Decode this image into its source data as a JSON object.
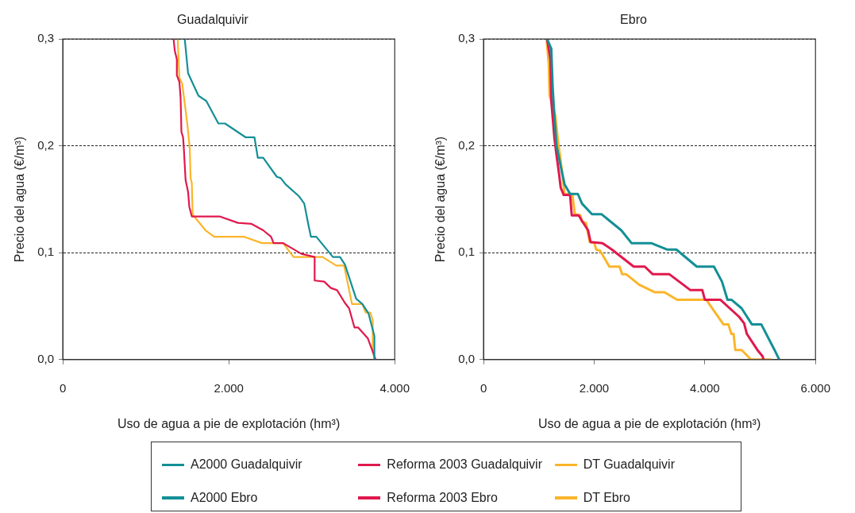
{
  "chart_data": [
    {
      "type": "line",
      "title": "Guadalquivir",
      "xlabel": "Uso de agua a pie de explotación (hm³)",
      "ylabel": "Precio del agua (€/m³)",
      "xlim": [
        0,
        4000
      ],
      "xticks": [
        0,
        {
          "value": 2000,
          "label": "2.000"
        },
        {
          "value": 4000,
          "label": "4.000"
        }
      ],
      "ylim": [
        0,
        0.3
      ],
      "yticks": [
        {
          "value": 0,
          "label": "0,0"
        },
        {
          "value": 0.1,
          "label": "0,1"
        },
        {
          "value": 0.2,
          "label": "0,2"
        },
        {
          "value": 0.3,
          "label": "0,3"
        }
      ],
      "grid": "y",
      "legend": "bottom",
      "series": [
        {
          "name": "A2000 Guadalquivir",
          "color": "#148f96",
          "x": [
            1470,
            1510,
            1635,
            1730,
            1875,
            1955,
            2205,
            2310,
            2350,
            2415,
            2580,
            2625,
            2685,
            2845,
            2910,
            2960,
            2990,
            3055,
            3255,
            3340,
            3400,
            3535,
            3610,
            3685,
            3755,
            3755
          ],
          "values": [
            0.3,
            0.268,
            0.247,
            0.242,
            0.221,
            0.221,
            0.208,
            0.208,
            0.189,
            0.189,
            0.171,
            0.17,
            0.164,
            0.153,
            0.146,
            0.126,
            0.115,
            0.115,
            0.096,
            0.096,
            0.089,
            0.057,
            0.052,
            0.043,
            0.022,
            0
          ]
        },
        {
          "name": "Reforma 2003 Guadalquivir",
          "color": "#e0194d",
          "x": [
            1335,
            1350,
            1375,
            1375,
            1405,
            1420,
            1430,
            1450,
            1460,
            1480,
            1510,
            1525,
            1555,
            1890,
            2110,
            2275,
            2415,
            2510,
            2540,
            2655,
            2875,
            3035,
            3035,
            3150,
            3230,
            3305,
            3400,
            3450,
            3515,
            3560,
            3675,
            3770
          ],
          "values": [
            0.3,
            0.289,
            0.281,
            0.266,
            0.26,
            0.245,
            0.213,
            0.208,
            0.196,
            0.168,
            0.157,
            0.143,
            0.134,
            0.134,
            0.128,
            0.127,
            0.121,
            0.115,
            0.109,
            0.109,
            0.099,
            0.096,
            0.074,
            0.073,
            0.067,
            0.065,
            0.053,
            0.048,
            0.03,
            0.03,
            0.02,
            0
          ]
        },
        {
          "name": "DT Guadalquivir",
          "color": "#fbb52b",
          "x": [
            1385,
            1405,
            1440,
            1500,
            1530,
            1540,
            1555,
            1565,
            1605,
            1720,
            1825,
            2180,
            2400,
            2655,
            2780,
            3130,
            3295,
            3390,
            3485,
            3610,
            3650,
            3705,
            3735,
            3735,
            3755
          ],
          "values": [
            0.3,
            0.264,
            0.258,
            0.221,
            0.198,
            0.17,
            0.165,
            0.136,
            0.132,
            0.121,
            0.115,
            0.115,
            0.109,
            0.109,
            0.096,
            0.096,
            0.088,
            0.088,
            0.052,
            0.052,
            0.044,
            0.044,
            0.037,
            0.011,
            0
          ]
        }
      ]
    },
    {
      "type": "line",
      "title": "Ebro",
      "xlabel": "Uso de agua a pie de explotación (hm³)",
      "ylabel": "Precio del agua (€/m³)",
      "xlim": [
        0,
        6000
      ],
      "xticks": [
        0,
        {
          "value": 2000,
          "label": "2.000"
        },
        {
          "value": 4000,
          "label": "4.000"
        },
        {
          "value": 6000,
          "label": "6.000"
        }
      ],
      "ylim": [
        0,
        0.3
      ],
      "yticks": [
        {
          "value": 0,
          "label": "0,0"
        },
        {
          "value": 0.1,
          "label": "0,1"
        },
        {
          "value": 0.2,
          "label": "0,2"
        },
        {
          "value": 0.3,
          "label": "0,3"
        }
      ],
      "grid": "y",
      "legend": "bottom",
      "series": [
        {
          "name": "A2000 Ebro",
          "color": "#148f96",
          "x": [
            1150,
            1225,
            1250,
            1280,
            1320,
            1395,
            1465,
            1565,
            1705,
            1780,
            1960,
            2135,
            2490,
            2675,
            3030,
            3315,
            3485,
            3855,
            4165,
            4310,
            4410,
            4480,
            4665,
            4850,
            5020,
            5260,
            5345
          ],
          "values": [
            0.3,
            0.291,
            0.255,
            0.229,
            0.2,
            0.181,
            0.164,
            0.155,
            0.155,
            0.146,
            0.136,
            0.136,
            0.121,
            0.109,
            0.109,
            0.103,
            0.103,
            0.087,
            0.087,
            0.073,
            0.056,
            0.056,
            0.048,
            0.033,
            0.033,
            0.009,
            0
          ]
        },
        {
          "name": "Reforma 2003 Ebro",
          "color": "#e0194d",
          "x": [
            1150,
            1210,
            1225,
            1280,
            1320,
            1365,
            1395,
            1450,
            1565,
            1595,
            1720,
            1790,
            1890,
            1935,
            2150,
            2320,
            2715,
            2915,
            3055,
            3355,
            3740,
            3955,
            4000,
            4280,
            4620,
            4710,
            4760,
            4950,
            5045,
            5060
          ],
          "values": [
            0.3,
            0.281,
            0.242,
            0.208,
            0.191,
            0.174,
            0.161,
            0.154,
            0.154,
            0.135,
            0.135,
            0.129,
            0.121,
            0.11,
            0.109,
            0.103,
            0.087,
            0.087,
            0.08,
            0.08,
            0.065,
            0.065,
            0.056,
            0.056,
            0.04,
            0.034,
            0.024,
            0.009,
            0.003,
            0
          ]
        },
        {
          "name": "DT Ebro",
          "color": "#fbb52b",
          "x": [
            1140,
            1180,
            1195,
            1250,
            1295,
            1350,
            1395,
            1435,
            1465,
            1605,
            1650,
            1750,
            1780,
            1850,
            1920,
            2005,
            2035,
            2105,
            2275,
            2460,
            2505,
            2575,
            2815,
            3100,
            3270,
            3500,
            4025,
            4335,
            4425,
            4480,
            4520,
            4550,
            4665,
            4835,
            5205
          ],
          "values": [
            0.3,
            0.276,
            0.247,
            0.238,
            0.229,
            0.203,
            0.186,
            0.169,
            0.155,
            0.155,
            0.136,
            0.135,
            0.129,
            0.128,
            0.11,
            0.109,
            0.103,
            0.102,
            0.087,
            0.087,
            0.08,
            0.08,
            0.07,
            0.063,
            0.063,
            0.056,
            0.056,
            0.033,
            0.033,
            0.024,
            0.024,
            0.009,
            0.009,
            0,
            0
          ]
        }
      ]
    }
  ]
}
